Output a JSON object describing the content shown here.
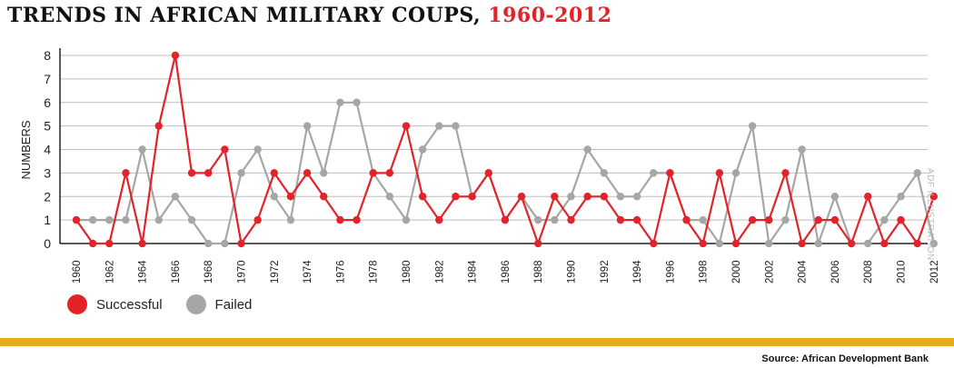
{
  "title": {
    "main": "TRENDS IN AFRICAN MILITARY COUPS,",
    "years": "1960-2012"
  },
  "credit": "ADF ILLUSTRATION",
  "source": "Source: African Development Bank",
  "colors": {
    "successful": "#e2232a",
    "failed": "#a6a6a6",
    "band": "#e6ac1c",
    "title_accent": "#e2232a"
  },
  "chart_data": {
    "type": "line",
    "ylabel": "NUMBERS",
    "xlabel": "",
    "ylim": [
      0,
      8
    ],
    "grid": true,
    "legend_position": "bottom-left",
    "x": [
      1960,
      1961,
      1962,
      1963,
      1964,
      1965,
      1966,
      1967,
      1968,
      1969,
      1970,
      1971,
      1972,
      1973,
      1974,
      1975,
      1976,
      1977,
      1978,
      1979,
      1980,
      1981,
      1982,
      1983,
      1984,
      1985,
      1986,
      1987,
      1988,
      1989,
      1990,
      1991,
      1992,
      1993,
      1994,
      1995,
      1996,
      1997,
      1998,
      1999,
      2000,
      2001,
      2002,
      2003,
      2004,
      2005,
      2006,
      2007,
      2008,
      2009,
      2010,
      2011,
      2012
    ],
    "x_tick_labels": [
      "1960",
      "1962",
      "1964",
      "1966",
      "1968",
      "1970",
      "1972",
      "1974",
      "1976",
      "1978",
      "1980",
      "1982",
      "1984",
      "1986",
      "1988",
      "1990",
      "1992",
      "1994",
      "1996",
      "1998",
      "2000",
      "2002",
      "2004",
      "2006",
      "2008",
      "2010",
      "2012"
    ],
    "y_ticks": [
      0,
      1,
      2,
      3,
      4,
      5,
      6,
      7,
      8
    ],
    "series": [
      {
        "name": "Successful",
        "color": "#e2232a",
        "values": [
          1,
          0,
          0,
          3,
          0,
          5,
          8,
          3,
          3,
          4,
          0,
          1,
          3,
          2,
          3,
          2,
          1,
          1,
          3,
          3,
          5,
          2,
          1,
          2,
          2,
          3,
          1,
          2,
          0,
          2,
          1,
          2,
          2,
          1,
          1,
          0,
          3,
          1,
          0,
          3,
          0,
          1,
          1,
          3,
          0,
          1,
          1,
          0,
          2,
          0,
          1,
          0,
          2
        ]
      },
      {
        "name": "Failed",
        "color": "#a6a6a6",
        "values": [
          1,
          1,
          1,
          1,
          4,
          1,
          2,
          1,
          0,
          0,
          3,
          4,
          2,
          1,
          5,
          3,
          6,
          6,
          3,
          2,
          1,
          4,
          5,
          5,
          2,
          3,
          1,
          2,
          1,
          1,
          2,
          4,
          3,
          2,
          2,
          3,
          3,
          1,
          1,
          0,
          3,
          5,
          0,
          1,
          4,
          0,
          2,
          0,
          0,
          1,
          2,
          3,
          0
        ]
      }
    ]
  }
}
